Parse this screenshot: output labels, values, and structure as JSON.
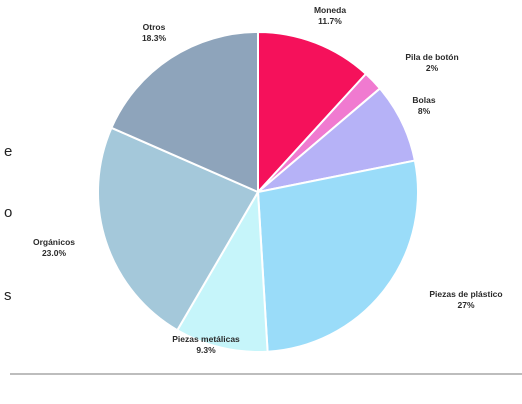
{
  "chart_data": {
    "type": "pie",
    "title": "",
    "slices": [
      {
        "label": "Moneda",
        "value_label": "11.7%",
        "value": 11.7,
        "color": "#f5115b"
      },
      {
        "label": "Pila de botón",
        "value_label": "2%",
        "value": 2,
        "color": "#f07ad0"
      },
      {
        "label": "Bolas",
        "value_label": "8%",
        "value": 8,
        "color": "#b6b2f7"
      },
      {
        "label": "Piezas de plástico",
        "value_label": "27%",
        "value": 27,
        "color": "#9adcf9"
      },
      {
        "label": "Piezas metálicas",
        "value_label": "9.3%",
        "value": 9.3,
        "color": "#c6f5fa"
      },
      {
        "label": "Orgánicos",
        "value_label": "23.0%",
        "value": 23.0,
        "color": "#a4c8da"
      },
      {
        "label": "Otros",
        "value_label": "18.3%",
        "value": 18.3,
        "color": "#8ea4bb"
      }
    ],
    "start_angle": "12 o'clock",
    "direction": "clockwise",
    "legend": "none"
  },
  "edge_text": [
    "e",
    "o",
    "s"
  ]
}
